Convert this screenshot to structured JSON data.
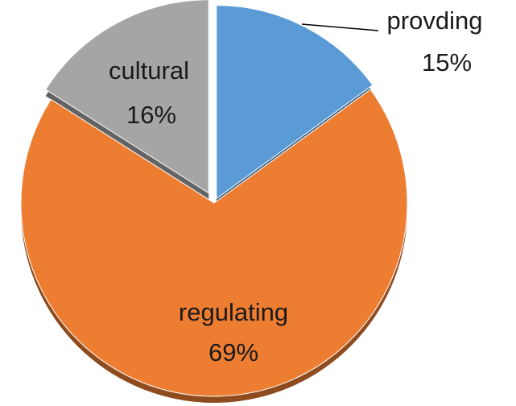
{
  "chart_data": {
    "type": "pie",
    "categories": [
      "provding",
      "regulating",
      "cultural"
    ],
    "values": [
      15,
      69,
      16
    ],
    "value_labels": [
      "15%",
      "69%",
      "16%"
    ],
    "colors": [
      "#5b9bd5",
      "#ed7d31",
      "#a5a5a5"
    ]
  }
}
